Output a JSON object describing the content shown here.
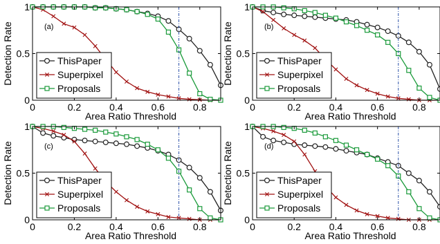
{
  "chart_data": [
    {
      "type": "line",
      "panel_label": "(a)",
      "xlabel": "Area Ratio Threshold",
      "ylabel": "Detection Rate",
      "xlim": [
        0,
        0.9
      ],
      "ylim": [
        0,
        1
      ],
      "xticks": [
        "0",
        "0.2",
        "0.4",
        "0.6",
        "0.8"
      ],
      "yticks": [
        "0",
        "0.5",
        "1"
      ],
      "vline_x": 0.7,
      "legend": "lower-left",
      "series": [
        {
          "name": "ThisPaper",
          "color": "#222222",
          "marker": "circle",
          "x": [
            0,
            0.05,
            0.1,
            0.15,
            0.2,
            0.25,
            0.3,
            0.35,
            0.4,
            0.45,
            0.5,
            0.55,
            0.6,
            0.65,
            0.7,
            0.75,
            0.8,
            0.85,
            0.9
          ],
          "y": [
            1,
            1,
            1,
            1,
            1,
            1,
            0.99,
            0.99,
            0.98,
            0.97,
            0.95,
            0.93,
            0.9,
            0.85,
            0.76,
            0.66,
            0.53,
            0.38,
            0.16
          ]
        },
        {
          "name": "Superpixel",
          "color": "#a01010",
          "marker": "x",
          "x": [
            0,
            0.05,
            0.1,
            0.15,
            0.2,
            0.25,
            0.3,
            0.35,
            0.4,
            0.45,
            0.5,
            0.55,
            0.6,
            0.65,
            0.7,
            0.75,
            0.8,
            0.85,
            0.9
          ],
          "y": [
            1,
            0.97,
            0.9,
            0.82,
            0.78,
            0.7,
            0.58,
            0.44,
            0.3,
            0.2,
            0.13,
            0.09,
            0.06,
            0.04,
            0.02,
            0.01,
            0.005,
            0,
            0
          ]
        },
        {
          "name": "Proposals",
          "color": "#1a9a3a",
          "marker": "square",
          "x": [
            0,
            0.05,
            0.1,
            0.15,
            0.2,
            0.25,
            0.3,
            0.35,
            0.4,
            0.45,
            0.5,
            0.55,
            0.6,
            0.65,
            0.7,
            0.75,
            0.8,
            0.85,
            0.9
          ],
          "y": [
            1,
            1,
            1,
            1,
            1,
            1,
            0.99,
            0.99,
            0.98,
            0.97,
            0.95,
            0.92,
            0.87,
            0.73,
            0.54,
            0.29,
            0.07,
            0.01,
            0
          ]
        }
      ]
    },
    {
      "type": "line",
      "panel_label": "(b)",
      "xlabel": "Area Ratio Threshold",
      "ylabel": "Detection Rate",
      "xlim": [
        0,
        0.9
      ],
      "ylim": [
        0,
        1
      ],
      "xticks": [
        "0",
        "0.2",
        "0.4",
        "0.6",
        "0.8"
      ],
      "yticks": [
        "0",
        "0.5",
        "1"
      ],
      "vline_x": 0.7,
      "legend": "lower-left",
      "series": [
        {
          "name": "ThisPaper",
          "color": "#222222",
          "marker": "circle",
          "x": [
            0,
            0.05,
            0.1,
            0.15,
            0.2,
            0.25,
            0.3,
            0.35,
            0.4,
            0.45,
            0.5,
            0.55,
            0.6,
            0.65,
            0.7,
            0.75,
            0.8,
            0.85,
            0.9
          ],
          "y": [
            1,
            0.96,
            0.94,
            0.92,
            0.91,
            0.9,
            0.89,
            0.88,
            0.87,
            0.86,
            0.84,
            0.81,
            0.78,
            0.74,
            0.69,
            0.62,
            0.52,
            0.38,
            0.12
          ]
        },
        {
          "name": "Superpixel",
          "color": "#a01010",
          "marker": "x",
          "x": [
            0,
            0.05,
            0.1,
            0.15,
            0.2,
            0.25,
            0.3,
            0.35,
            0.4,
            0.45,
            0.5,
            0.55,
            0.6,
            0.65,
            0.7,
            0.75,
            0.8,
            0.85,
            0.9
          ],
          "y": [
            1,
            0.95,
            0.86,
            0.77,
            0.7,
            0.64,
            0.56,
            0.44,
            0.33,
            0.23,
            0.16,
            0.11,
            0.07,
            0.04,
            0.02,
            0.01,
            0,
            0,
            0
          ]
        },
        {
          "name": "Proposals",
          "color": "#1a9a3a",
          "marker": "square",
          "x": [
            0,
            0.05,
            0.1,
            0.15,
            0.2,
            0.25,
            0.3,
            0.35,
            0.4,
            0.45,
            0.5,
            0.55,
            0.6,
            0.65,
            0.7,
            0.75,
            0.8,
            0.85,
            0.9
          ],
          "y": [
            1,
            1,
            1,
            0.99,
            0.98,
            0.96,
            0.94,
            0.91,
            0.88,
            0.84,
            0.8,
            0.75,
            0.7,
            0.62,
            0.5,
            0.32,
            0.13,
            0.03,
            0
          ]
        }
      ]
    },
    {
      "type": "line",
      "panel_label": "(c)",
      "xlabel": "Area Ratio Threshold",
      "ylabel": "Detection Rate",
      "xlim": [
        0,
        0.9
      ],
      "ylim": [
        0,
        1
      ],
      "xticks": [
        "0",
        "0.2",
        "0.4",
        "0.6",
        "0.8"
      ],
      "yticks": [
        "0",
        "0.5",
        "1"
      ],
      "vline_x": 0.7,
      "legend": "lower-left",
      "series": [
        {
          "name": "ThisPaper",
          "color": "#222222",
          "marker": "circle",
          "x": [
            0,
            0.05,
            0.1,
            0.15,
            0.2,
            0.25,
            0.3,
            0.35,
            0.4,
            0.45,
            0.5,
            0.55,
            0.6,
            0.65,
            0.7,
            0.75,
            0.8,
            0.85,
            0.9
          ],
          "y": [
            1,
            0.93,
            0.9,
            0.88,
            0.86,
            0.85,
            0.84,
            0.83,
            0.82,
            0.81,
            0.79,
            0.77,
            0.74,
            0.7,
            0.64,
            0.56,
            0.45,
            0.3,
            0.1
          ]
        },
        {
          "name": "Superpixel",
          "color": "#a01010",
          "marker": "x",
          "x": [
            0,
            0.05,
            0.1,
            0.15,
            0.2,
            0.25,
            0.3,
            0.35,
            0.4,
            0.45,
            0.5,
            0.55,
            0.6,
            0.65,
            0.7,
            0.75,
            0.8,
            0.85,
            0.9
          ],
          "y": [
            1,
            0.98,
            0.95,
            0.91,
            0.84,
            0.71,
            0.55,
            0.41,
            0.3,
            0.21,
            0.14,
            0.09,
            0.06,
            0.03,
            0.02,
            0.01,
            0,
            0,
            0
          ]
        },
        {
          "name": "Proposals",
          "color": "#1a9a3a",
          "marker": "square",
          "x": [
            0,
            0.05,
            0.1,
            0.15,
            0.2,
            0.25,
            0.3,
            0.35,
            0.4,
            0.45,
            0.5,
            0.55,
            0.6,
            0.65,
            0.7,
            0.75,
            0.8,
            0.85,
            0.9
          ],
          "y": [
            1,
            1,
            1,
            0.99,
            0.98,
            0.97,
            0.96,
            0.94,
            0.92,
            0.89,
            0.86,
            0.81,
            0.75,
            0.66,
            0.52,
            0.32,
            0.12,
            0.02,
            0
          ]
        }
      ]
    },
    {
      "type": "line",
      "panel_label": "(d)",
      "xlabel": "Area Ratio Threshold",
      "ylabel": "Detection Rate",
      "xlim": [
        0,
        0.9
      ],
      "ylim": [
        0,
        1
      ],
      "xticks": [
        "0",
        "0.2",
        "0.4",
        "0.6",
        "0.8"
      ],
      "yticks": [
        "0",
        "0.5",
        "1"
      ],
      "vline_x": 0.7,
      "legend": "lower-left",
      "series": [
        {
          "name": "ThisPaper",
          "color": "#222222",
          "marker": "circle",
          "x": [
            0,
            0.05,
            0.1,
            0.15,
            0.2,
            0.25,
            0.3,
            0.35,
            0.4,
            0.45,
            0.5,
            0.55,
            0.6,
            0.65,
            0.7,
            0.75,
            0.8,
            0.85,
            0.9
          ],
          "y": [
            1,
            0.89,
            0.85,
            0.83,
            0.81,
            0.8,
            0.79,
            0.78,
            0.76,
            0.74,
            0.72,
            0.7,
            0.66,
            0.62,
            0.58,
            0.5,
            0.42,
            0.3,
            0.14
          ]
        },
        {
          "name": "Superpixel",
          "color": "#a01010",
          "marker": "x",
          "x": [
            0,
            0.05,
            0.1,
            0.15,
            0.2,
            0.25,
            0.3,
            0.35,
            0.4,
            0.45,
            0.5,
            0.55,
            0.6,
            0.65,
            0.7,
            0.75,
            0.8,
            0.85,
            0.9
          ],
          "y": [
            1,
            0.98,
            0.95,
            0.91,
            0.84,
            0.7,
            0.52,
            0.36,
            0.24,
            0.16,
            0.1,
            0.06,
            0.04,
            0.02,
            0.01,
            0,
            0,
            0,
            0
          ]
        },
        {
          "name": "Proposals",
          "color": "#1a9a3a",
          "marker": "square",
          "x": [
            0,
            0.05,
            0.1,
            0.15,
            0.2,
            0.25,
            0.3,
            0.35,
            0.4,
            0.45,
            0.5,
            0.55,
            0.6,
            0.65,
            0.7,
            0.75,
            0.8,
            0.85,
            0.9
          ],
          "y": [
            1,
            1,
            1,
            0.99,
            0.98,
            0.96,
            0.93,
            0.89,
            0.85,
            0.8,
            0.75,
            0.7,
            0.65,
            0.58,
            0.47,
            0.3,
            0.12,
            0.02,
            0
          ]
        }
      ]
    }
  ]
}
